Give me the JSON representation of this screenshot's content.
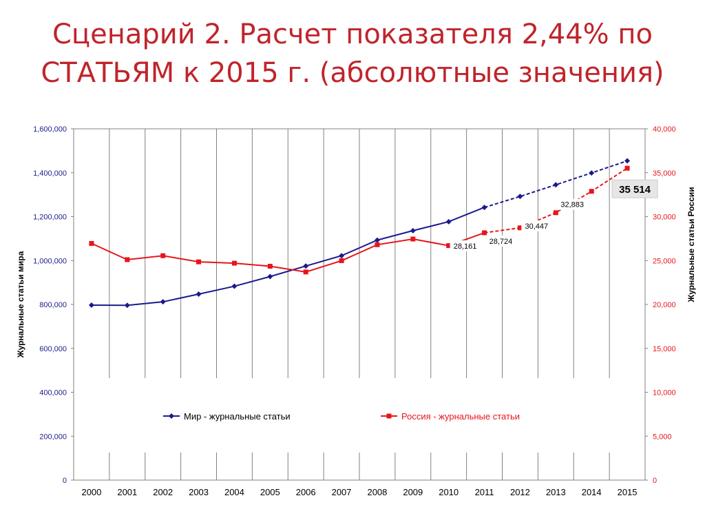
{
  "slide": {
    "title_line1": "Сценарий 2. Расчет показателя 2,44% по",
    "title_line2": "СТАТЬЯМ к 2015 г. (абсолютные значения)"
  },
  "chart_data": {
    "type": "line",
    "categories": [
      "2000",
      "2001",
      "2002",
      "2003",
      "2004",
      "2005",
      "2006",
      "2007",
      "2008",
      "2009",
      "2010",
      "2011",
      "2012",
      "2013",
      "2014",
      "2015"
    ],
    "ylabel": "Журнальные  статьи  мира",
    "y2label": "Журнальные статьи России",
    "ylim": [
      0,
      1600000
    ],
    "y2lim": [
      0,
      40000
    ],
    "yticks": [
      "0",
      "200,000",
      "400,000",
      "600,000",
      "800,000",
      "1,000,000",
      "1,200,000",
      "1,400,000",
      "1,600,000"
    ],
    "y2ticks": [
      "0",
      "5,000",
      "10,000",
      "15,000",
      "20,000",
      "25,000",
      "30,000",
      "35,000",
      "40,000"
    ],
    "grid": "vertical",
    "legend_placement": "inside-bottom",
    "series": [
      {
        "name": "Мир - журнальные статьи",
        "axis": "left",
        "color": "#1a1a8c",
        "marker": "diamond",
        "projected_from_index": 11,
        "values": [
          797000,
          796000,
          812000,
          847000,
          883000,
          927000,
          975000,
          1022000,
          1093000,
          1136000,
          1177000,
          1242000,
          1292000,
          1345000,
          1399000,
          1454000
        ]
      },
      {
        "name": "Россия - журнальные статьи",
        "axis": "right",
        "color": "#e8141b",
        "marker": "square",
        "projected_from_index": 11,
        "values": [
          26950,
          25100,
          25550,
          24850,
          24700,
          24350,
          23700,
          24980,
          26800,
          27450,
          26700,
          28161,
          28724,
          30447,
          32883,
          35514
        ]
      }
    ],
    "data_labels": [
      {
        "series": 1,
        "index": 11,
        "text": "28,161"
      },
      {
        "series": 1,
        "index": 12,
        "text": "28,724"
      },
      {
        "series": 1,
        "index": 13,
        "text": "30,447"
      },
      {
        "series": 1,
        "index": 14,
        "text": "32,883"
      }
    ],
    "callout": {
      "series": 1,
      "index": 15,
      "text": "35 514"
    }
  }
}
